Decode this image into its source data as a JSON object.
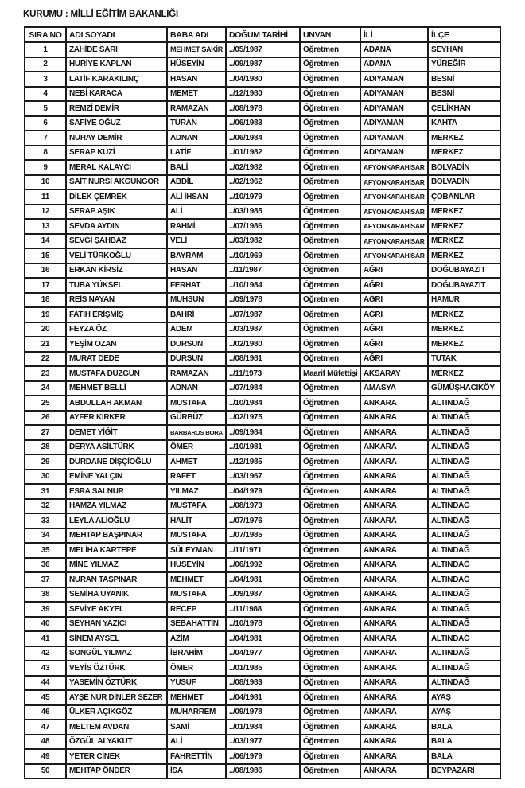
{
  "document": {
    "institution_label": "KURUMU : MİLLİ EĞİTİM BAKANLIĞI"
  },
  "table": {
    "columns": [
      {
        "key": "sira-no",
        "label": "SIRA NO"
      },
      {
        "key": "adi-soyadi",
        "label": "ADI SOYADI"
      },
      {
        "key": "baba-adi",
        "label": "BABA ADI"
      },
      {
        "key": "dogum-tarihi",
        "label": "DOĞUM TARİHİ"
      },
      {
        "key": "unvan",
        "label": "UNVAN"
      },
      {
        "key": "ili",
        "label": "İLİ"
      },
      {
        "key": "ilce",
        "label": "İLÇE"
      }
    ],
    "rows": [
      [
        "1",
        "ZAHİDE SARI",
        "MEHMET ŞAKİR",
        "../05/1987",
        "Öğretmen",
        "ADANA",
        "SEYHAN"
      ],
      [
        "2",
        "HURİYE KAPLAN",
        "HÜSEYİN",
        "../09/1987",
        "Öğretmen",
        "ADANA",
        "YÜREĞİR"
      ],
      [
        "3",
        "LATİF KARAKILINÇ",
        "HASAN",
        "../04/1980",
        "Öğretmen",
        "ADIYAMAN",
        "BESNİ"
      ],
      [
        "4",
        "NEBİ KARACA",
        "MEMET",
        "../12/1980",
        "Öğretmen",
        "ADIYAMAN",
        "BESNİ"
      ],
      [
        "5",
        "REMZİ DEMİR",
        "RAMAZAN",
        "../08/1978",
        "Öğretmen",
        "ADIYAMAN",
        "ÇELİKHAN"
      ],
      [
        "6",
        "SAFİYE OĞUZ",
        "TURAN",
        "../06/1983",
        "Öğretmen",
        "ADIYAMAN",
        "KAHTA"
      ],
      [
        "7",
        "NURAY DEMİR",
        "ADNAN",
        "../06/1984",
        "Öğretmen",
        "ADIYAMAN",
        "MERKEZ"
      ],
      [
        "8",
        "SERAP KUZİ",
        "LATİF",
        "../01/1982",
        "Öğretmen",
        "ADIYAMAN",
        "MERKEZ"
      ],
      [
        "9",
        "MERAL KALAYCI",
        "BALİ",
        "../02/1982",
        "Öğretmen",
        "AFYONKARAHİSAR",
        "BOLVADİN"
      ],
      [
        "10",
        "SAİT NURSİ AKGÜNGÖR",
        "ABDİL",
        "../02/1962",
        "Öğretmen",
        "AFYONKARAHİSAR",
        "BOLVADİN"
      ],
      [
        "11",
        "DİLEK ÇEMREK",
        "ALİ İHSAN",
        "../10/1979",
        "Öğretmen",
        "AFYONKARAHİSAR",
        "ÇOBANLAR"
      ],
      [
        "12",
        "SERAP AŞIK",
        "ALİ",
        "../03/1985",
        "Öğretmen",
        "AFYONKARAHİSAR",
        "MERKEZ"
      ],
      [
        "13",
        "SEVDA AYDIN",
        "RAHMİ",
        "../07/1986",
        "Öğretmen",
        "AFYONKARAHİSAR",
        "MERKEZ"
      ],
      [
        "14",
        "SEVGİ ŞAHBAZ",
        "VELİ",
        "../03/1982",
        "Öğretmen",
        "AFYONKARAHİSAR",
        "MERKEZ"
      ],
      [
        "15",
        "VELİ TÜRKOĞLU",
        "BAYRAM",
        "../10/1969",
        "Öğretmen",
        "AFYONKARAHİSAR",
        "MERKEZ"
      ],
      [
        "16",
        "ERKAN KİRSİZ",
        "HASAN",
        "../11/1987",
        "Öğretmen",
        "AĞRI",
        "DOĞUBAYAZIT"
      ],
      [
        "17",
        "TUBA YÜKSEL",
        "FERHAT",
        "../10/1984",
        "Öğretmen",
        "AĞRI",
        "DOĞUBAYAZIT"
      ],
      [
        "18",
        "REİS NAYAN",
        "MUHSUN",
        "../09/1978",
        "Öğretmen",
        "AĞRI",
        "HAMUR"
      ],
      [
        "19",
        "FATİH ERİŞMİŞ",
        "BAHRİ",
        "../07/1987",
        "Öğretmen",
        "AĞRI",
        "MERKEZ"
      ],
      [
        "20",
        "FEYZA ÖZ",
        "ADEM",
        "../03/1987",
        "Öğretmen",
        "AĞRI",
        "MERKEZ"
      ],
      [
        "21",
        "YEŞİM OZAN",
        "DURSUN",
        "../02/1980",
        "Öğretmen",
        "AĞRI",
        "MERKEZ"
      ],
      [
        "22",
        "MURAT DEDE",
        "DURSUN",
        "../08/1981",
        "Öğretmen",
        "AĞRI",
        "TUTAK"
      ],
      [
        "23",
        "MUSTAFA DÜZGÜN",
        "RAMAZAN",
        "../11/1973",
        "Maarif Müfettişi",
        "AKSARAY",
        "MERKEZ"
      ],
      [
        "24",
        "MEHMET BELLİ",
        "ADNAN",
        "../07/1984",
        "Öğretmen",
        "AMASYA",
        "GÜMÜŞHACIKÖY"
      ],
      [
        "25",
        "ABDULLAH AKMAN",
        "MUSTAFA",
        "../10/1984",
        "Öğretmen",
        "ANKARA",
        "ALTINDAĞ"
      ],
      [
        "26",
        "AYFER KIRKER",
        "GÜRBÜZ",
        "../02/1975",
        "Öğretmen",
        "ANKARA",
        "ALTINDAĞ"
      ],
      [
        "27",
        "DEMET YİĞİT",
        "BARBAROS BORA",
        "../09/1984",
        "Öğretmen",
        "ANKARA",
        "ALTINDAĞ"
      ],
      [
        "28",
        "DERYA ASİLTÜRK",
        "ÖMER",
        "../10/1981",
        "Öğretmen",
        "ANKARA",
        "ALTINDAĞ"
      ],
      [
        "29",
        "DURDANE DİŞÇİOĞLU",
        "AHMET",
        "../12/1985",
        "Öğretmen",
        "ANKARA",
        "ALTINDAĞ"
      ],
      [
        "30",
        "EMİNE YALÇIN",
        "RAFET",
        "../03/1967",
        "Öğretmen",
        "ANKARA",
        "ALTINDAĞ"
      ],
      [
        "31",
        "ESRA SALNUR",
        "YILMAZ",
        "../04/1979",
        "Öğretmen",
        "ANKARA",
        "ALTINDAĞ"
      ],
      [
        "32",
        "HAMZA YILMAZ",
        "MUSTAFA",
        "../08/1973",
        "Öğretmen",
        "ANKARA",
        "ALTINDAĞ"
      ],
      [
        "33",
        "LEYLA ALİOĞLU",
        "HALİT",
        "../07/1976",
        "Öğretmen",
        "ANKARA",
        "ALTINDAĞ"
      ],
      [
        "34",
        "MEHTAP BAŞPINAR",
        "MUSTAFA",
        "../07/1985",
        "Öğretmen",
        "ANKARA",
        "ALTINDAĞ"
      ],
      [
        "35",
        "MELİHA KARTEPE",
        "SÜLEYMAN",
        "../11/1971",
        "Öğretmen",
        "ANKARA",
        "ALTINDAĞ"
      ],
      [
        "36",
        "MİNE YILMAZ",
        "HÜSEYİN",
        "../06/1992",
        "Öğretmen",
        "ANKARA",
        "ALTINDAĞ"
      ],
      [
        "37",
        "NURAN TAŞPINAR",
        "MEHMET",
        "../04/1981",
        "Öğretmen",
        "ANKARA",
        "ALTINDAĞ"
      ],
      [
        "38",
        "SEMİHA UYANIK",
        "MUSTAFA",
        "../09/1987",
        "Öğretmen",
        "ANKARA",
        "ALTINDAĞ"
      ],
      [
        "39",
        "SEVİYE AKYEL",
        "RECEP",
        "../11/1988",
        "Öğretmen",
        "ANKARA",
        "ALTINDAĞ"
      ],
      [
        "40",
        "SEYHAN YAZICI",
        "SEBAHATTİN",
        "../10/1978",
        "Öğretmen",
        "ANKARA",
        "ALTINDAĞ"
      ],
      [
        "41",
        "SİNEM AYSEL",
        "AZİM",
        "../04/1981",
        "Öğretmen",
        "ANKARA",
        "ALTINDAĞ"
      ],
      [
        "42",
        "SONGÜL YILMAZ",
        "İBRAHİM",
        "../04/1977",
        "Öğretmen",
        "ANKARA",
        "ALTINDAĞ"
      ],
      [
        "43",
        "VEYİS ÖZTÜRK",
        "ÖMER",
        "../01/1985",
        "Öğretmen",
        "ANKARA",
        "ALTINDAĞ"
      ],
      [
        "44",
        "YASEMİN ÖZTÜRK",
        "YUSUF",
        "../08/1983",
        "Öğretmen",
        "ANKARA",
        "ALTINDAĞ"
      ],
      [
        "45",
        "AYŞE NUR DİNLER SEZER",
        "MEHMET",
        "../04/1981",
        "Öğretmen",
        "ANKARA",
        "AYAŞ"
      ],
      [
        "46",
        "ÜLKER AÇIKGÖZ",
        "MUHARREM",
        "../09/1978",
        "Öğretmen",
        "ANKARA",
        "AYAŞ"
      ],
      [
        "47",
        "MELTEM AVDAN",
        "SAMİ",
        "../01/1984",
        "Öğretmen",
        "ANKARA",
        "BALA"
      ],
      [
        "48",
        "ÖZGÜL ALYAKUT",
        "ALİ",
        "../03/1977",
        "Öğretmen",
        "ANKARA",
        "BALA"
      ],
      [
        "49",
        "YETER CİNEK",
        "FAHRETTİN",
        "../06/1979",
        "Öğretmen",
        "ANKARA",
        "BALA"
      ],
      [
        "50",
        "MEHTAP ÖNDER",
        "İSA",
        "../08/1986",
        "Öğretmen",
        "ANKARA",
        "BEYPAZARI"
      ]
    ]
  }
}
